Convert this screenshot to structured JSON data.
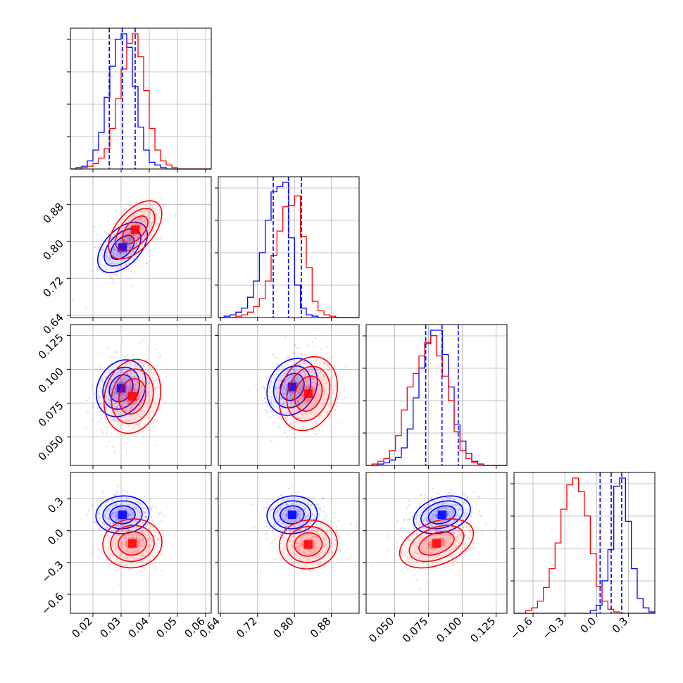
{
  "figure": {
    "colors": {
      "series_a": "#0000ff",
      "series_b": "#ff0000",
      "grid": "#b0b0b0",
      "axis": "#000000"
    }
  },
  "chart_data": [
    {
      "type": "histogram",
      "panel": "p1-marginal",
      "xlim": [
        0.012,
        0.062
      ],
      "bins": [
        0.012,
        0.014,
        0.016,
        0.018,
        0.02,
        0.022,
        0.024,
        0.026,
        0.028,
        0.03,
        0.032,
        0.034,
        0.036,
        0.038,
        0.04,
        0.042,
        0.044,
        0.046,
        0.048,
        0.05,
        0.052,
        0.054,
        0.056,
        0.058,
        0.06,
        0.062
      ],
      "series": [
        {
          "color": "#0000ff",
          "counts": [
            0,
            0.01,
            0.02,
            0.06,
            0.14,
            0.27,
            0.53,
            0.76,
            0.96,
            1.0,
            0.9,
            0.61,
            0.31,
            0.14,
            0.05,
            0.03,
            0.01,
            0,
            0,
            0,
            0,
            0,
            0,
            0,
            0
          ]
        },
        {
          "color": "#ff0000",
          "counts": [
            0,
            0,
            0.01,
            0.02,
            0.04,
            0.08,
            0.15,
            0.3,
            0.52,
            0.74,
            0.93,
            1.0,
            0.83,
            0.58,
            0.3,
            0.14,
            0.06,
            0.03,
            0.01,
            0,
            0,
            0,
            0,
            0,
            0
          ]
        }
      ],
      "quantiles": [
        0.0258,
        0.0305,
        0.035
      ]
    },
    {
      "type": "histogram",
      "panel": "p2-marginal",
      "xlim": [
        0.635,
        0.94
      ],
      "bins": [
        0.635,
        0.6477,
        0.6604,
        0.6731,
        0.6858,
        0.6985,
        0.7113,
        0.724,
        0.7367,
        0.7494,
        0.7621,
        0.7748,
        0.7875,
        0.8002,
        0.8129,
        0.8256,
        0.8383,
        0.851,
        0.8637,
        0.8765,
        0.8892,
        0.9019,
        0.9146,
        0.9273,
        0.94
      ],
      "series": [
        {
          "color": "#0000ff",
          "counts": [
            0,
            0.01,
            0.02,
            0.04,
            0.07,
            0.15,
            0.27,
            0.48,
            0.72,
            0.93,
            0.97,
            1.0,
            0.59,
            0.24,
            0.07,
            0.02,
            0.01,
            0,
            0,
            0,
            0,
            0,
            0,
            0
          ]
        },
        {
          "color": "#ff0000",
          "counts": [
            0,
            0,
            0,
            0.01,
            0.02,
            0.04,
            0.08,
            0.14,
            0.27,
            0.46,
            0.64,
            0.82,
            0.83,
            0.9,
            0.6,
            0.37,
            0.12,
            0.05,
            0.02,
            0.01,
            0,
            0,
            0,
            0
          ]
        }
      ],
      "quantiles": [
        0.754,
        0.787,
        0.815
      ]
    },
    {
      "type": "histogram",
      "panel": "p3-marginal",
      "xlim": [
        0.029,
        0.133
      ],
      "bins": [
        0.029,
        0.0333,
        0.0377,
        0.042,
        0.0463,
        0.0507,
        0.055,
        0.0593,
        0.0637,
        0.068,
        0.0723,
        0.0767,
        0.081,
        0.0853,
        0.0897,
        0.094,
        0.0983,
        0.1027,
        0.107,
        0.1113,
        0.1157,
        0.12,
        0.1243,
        0.1287,
        0.133
      ],
      "series": [
        {
          "color": "#0000ff",
          "counts": [
            0,
            0,
            0.01,
            0.02,
            0.04,
            0.06,
            0.13,
            0.27,
            0.5,
            0.72,
            0.9,
            1.0,
            1.0,
            0.82,
            0.58,
            0.3,
            0.18,
            0.09,
            0.03,
            0.01,
            0,
            0,
            0,
            0
          ]
        },
        {
          "color": "#ff0000",
          "counts": [
            0,
            0.01,
            0.03,
            0.05,
            0.11,
            0.22,
            0.41,
            0.58,
            0.68,
            0.81,
            0.91,
            0.96,
            0.81,
            0.66,
            0.48,
            0.25,
            0.11,
            0.05,
            0.02,
            0.01,
            0,
            0,
            0,
            0
          ]
        }
      ],
      "quantiles": [
        0.073,
        0.085,
        0.097
      ]
    },
    {
      "type": "histogram",
      "panel": "p4-marginal",
      "xlim": [
        -0.78,
        0.55
      ],
      "bins": [
        -0.78,
        -0.7246,
        -0.6692,
        -0.6137,
        -0.5583,
        -0.5029,
        -0.4475,
        -0.3921,
        -0.3367,
        -0.2812,
        -0.2258,
        -0.1704,
        -0.115,
        -0.0596,
        -0.0042,
        0.0513,
        0.1067,
        0.1621,
        0.2175,
        0.2729,
        0.3283,
        0.3837,
        0.4392,
        0.4946,
        0.55
      ],
      "series": [
        {
          "color": "#0000ff",
          "counts": [
            0,
            0,
            0,
            0,
            0,
            0,
            0,
            0,
            0,
            0,
            0,
            0,
            0,
            0.02,
            0.06,
            0.24,
            0.47,
            0.94,
            1.0,
            0.68,
            0.33,
            0.11,
            0.04,
            0.01
          ]
        },
        {
          "color": "#ff0000",
          "counts": [
            0,
            0,
            0.02,
            0.04,
            0.09,
            0.19,
            0.33,
            0.52,
            0.77,
            0.95,
            1.0,
            0.9,
            0.72,
            0.44,
            0.2,
            0.09,
            0.03,
            0.01,
            0,
            0,
            0,
            0,
            0,
            0
          ]
        }
      ],
      "quantiles": [
        0.033,
        0.138,
        0.237
      ]
    },
    {
      "type": "contour2d",
      "panel": "p1-vs-p2",
      "xlim": [
        0.012,
        0.062
      ],
      "ylim": [
        0.635,
        0.94
      ],
      "series": [
        {
          "color": "#0000ff",
          "center": [
            0.0305,
            0.787
          ],
          "sd": [
            0.0042,
            0.026
          ],
          "rho": 0.5
        },
        {
          "color": "#ff0000",
          "center": [
            0.035,
            0.825
          ],
          "sd": [
            0.0045,
            0.03
          ],
          "rho": 0.55
        }
      ]
    },
    {
      "type": "contour2d",
      "panel": "p1-vs-p3",
      "xlim": [
        0.012,
        0.062
      ],
      "ylim": [
        0.029,
        0.133
      ],
      "series": [
        {
          "color": "#0000ff",
          "center": [
            0.03,
            0.086
          ],
          "sd": [
            0.0042,
            0.01
          ],
          "rho": 0.2
        },
        {
          "color": "#ff0000",
          "center": [
            0.034,
            0.08
          ],
          "sd": [
            0.0048,
            0.013
          ],
          "rho": 0.15
        }
      ]
    },
    {
      "type": "contour2d",
      "panel": "p1-vs-p4",
      "xlim": [
        0.012,
        0.062
      ],
      "ylim": [
        -0.78,
        0.55
      ],
      "series": [
        {
          "color": "#0000ff",
          "center": [
            0.0305,
            0.15
          ],
          "sd": [
            0.0045,
            0.085
          ],
          "rho": 0.05
        },
        {
          "color": "#ff0000",
          "center": [
            0.034,
            -0.12
          ],
          "sd": [
            0.005,
            0.11
          ],
          "rho": 0.05
        }
      ]
    },
    {
      "type": "contour2d",
      "panel": "p2-vs-p3",
      "xlim": [
        0.635,
        0.94
      ],
      "ylim": [
        0.029,
        0.133
      ],
      "series": [
        {
          "color": "#0000ff",
          "center": [
            0.795,
            0.087
          ],
          "sd": [
            0.026,
            0.01
          ],
          "rho": 0.2
        },
        {
          "color": "#ff0000",
          "center": [
            0.83,
            0.082
          ],
          "sd": [
            0.03,
            0.013
          ],
          "rho": 0.2
        }
      ]
    },
    {
      "type": "contour2d",
      "panel": "p2-vs-p4",
      "xlim": [
        0.635,
        0.94
      ],
      "ylim": [
        -0.78,
        0.55
      ],
      "series": [
        {
          "color": "#0000ff",
          "center": [
            0.795,
            0.15
          ],
          "sd": [
            0.026,
            0.085
          ],
          "rho": 0.05
        },
        {
          "color": "#ff0000",
          "center": [
            0.83,
            -0.13
          ],
          "sd": [
            0.03,
            0.11
          ],
          "rho": 0.05
        }
      ]
    },
    {
      "type": "contour2d",
      "panel": "p3-vs-p4",
      "xlim": [
        0.029,
        0.133
      ],
      "ylim": [
        -0.78,
        0.55
      ],
      "series": [
        {
          "color": "#0000ff",
          "center": [
            0.085,
            0.15
          ],
          "sd": [
            0.01,
            0.085
          ],
          "rho": 0.3
        },
        {
          "color": "#ff0000",
          "center": [
            0.081,
            -0.12
          ],
          "sd": [
            0.013,
            0.11
          ],
          "rho": 0.4
        }
      ]
    }
  ],
  "ticks": {
    "p1": {
      "values": [
        0.02,
        0.03,
        0.04,
        0.05,
        0.06
      ],
      "labels": [
        "0.02",
        "0.03",
        "0.04",
        "0.05",
        "0.06"
      ]
    },
    "p2": {
      "values": [
        0.64,
        0.72,
        0.8,
        0.88
      ],
      "labels": [
        "0.64",
        "0.72",
        "0.80",
        "0.88"
      ]
    },
    "p3": {
      "values": [
        0.05,
        0.075,
        0.1,
        0.125
      ],
      "labels": [
        "0.050",
        "0.075",
        "0.100",
        "0.125"
      ]
    },
    "p4": {
      "values": [
        -0.6,
        -0.3,
        0.0,
        0.3
      ],
      "labels": [
        "−0.6",
        "−0.3",
        "0.0",
        "0.3"
      ]
    }
  }
}
